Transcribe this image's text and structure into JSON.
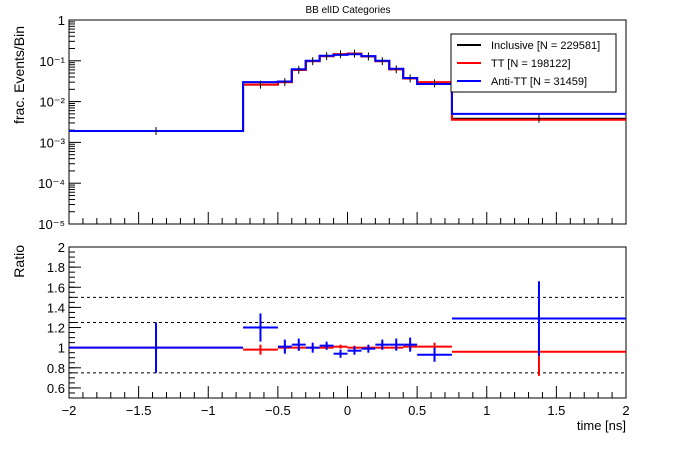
{
  "chart_data": [
    {
      "type": "line",
      "title": "BB elID Categories",
      "xlabel": "",
      "ylabel": "frac. Events/Bin",
      "xlim": [
        -2,
        2
      ],
      "ylim": [
        1e-05,
        1
      ],
      "yscale": "log",
      "y_tick_labels": [
        "10⁻⁵",
        "10⁻⁴",
        "10⁻³",
        "10⁻²",
        "10⁻¹",
        "1"
      ],
      "bin_edges": [
        -2,
        -0.75,
        -0.5,
        -0.4,
        -0.3,
        -0.2,
        -0.1,
        0,
        0.1,
        0.2,
        0.3,
        0.4,
        0.5,
        0.75,
        2
      ],
      "series": [
        {
          "name": "Inclusive [N = 229581]",
          "color": "#000000",
          "values": [
            0.0019,
            0.026,
            0.03,
            0.06,
            0.098,
            0.13,
            0.145,
            0.15,
            0.128,
            0.098,
            0.062,
            0.037,
            0.028,
            0.0038
          ]
        },
        {
          "name": "TT [N = 198122]",
          "color": "#ff0000",
          "values": [
            0.0019,
            0.026,
            0.03,
            0.06,
            0.098,
            0.13,
            0.145,
            0.15,
            0.128,
            0.098,
            0.062,
            0.037,
            0.03,
            0.0036
          ]
        },
        {
          "name": "Anti-TT [N = 31459]",
          "color": "#0000ff",
          "values": [
            0.0019,
            0.03,
            0.031,
            0.062,
            0.1,
            0.133,
            0.14,
            0.145,
            0.13,
            0.1,
            0.064,
            0.038,
            0.027,
            0.005
          ]
        }
      ],
      "legend": "top-right"
    },
    {
      "type": "scatter",
      "title": "",
      "xlabel": "time [ns]",
      "ylabel": "Ratio",
      "xlim": [
        -2,
        2
      ],
      "ylim": [
        0.5,
        2
      ],
      "x_tick_labels": [
        "−2",
        "−1.5",
        "−1",
        "−0.5",
        "0",
        "0.5",
        "1",
        "1.5",
        "2"
      ],
      "y_tick_labels": [
        "0.6",
        "0.8",
        "1",
        "1.2",
        "1.4",
        "1.6",
        "1.8",
        "2"
      ],
      "reference_lines": [
        0.75,
        1.25,
        1.5
      ],
      "series": [
        {
          "name": "TT",
          "color": "#ff0000",
          "points": [
            {
              "xlo": -2,
              "xhi": -0.75,
              "y": 1.0,
              "err": 0.01
            },
            {
              "xlo": -0.75,
              "xhi": -0.5,
              "y": 0.98,
              "err": 0.05
            },
            {
              "xlo": -0.5,
              "xhi": -0.4,
              "y": 1.0,
              "err": 0.03
            },
            {
              "xlo": -0.4,
              "xhi": -0.3,
              "y": 1.0,
              "err": 0.03
            },
            {
              "xlo": -0.3,
              "xhi": -0.2,
              "y": 1.0,
              "err": 0.02
            },
            {
              "xlo": -0.2,
              "xhi": -0.1,
              "y": 1.0,
              "err": 0.02
            },
            {
              "xlo": -0.1,
              "xhi": 0,
              "y": 1.01,
              "err": 0.02
            },
            {
              "xlo": 0,
              "xhi": 0.1,
              "y": 1.0,
              "err": 0.02
            },
            {
              "xlo": 0.1,
              "xhi": 0.2,
              "y": 1.0,
              "err": 0.02
            },
            {
              "xlo": 0.2,
              "xhi": 0.3,
              "y": 1.0,
              "err": 0.02
            },
            {
              "xlo": 0.3,
              "xhi": 0.4,
              "y": 1.0,
              "err": 0.02
            },
            {
              "xlo": 0.4,
              "xhi": 0.5,
              "y": 1.01,
              "err": 0.03
            },
            {
              "xlo": 0.5,
              "xhi": 0.75,
              "y": 1.01,
              "err": 0.04
            },
            {
              "xlo": 0.75,
              "xhi": 2,
              "y": 0.96,
              "err": 0.24
            }
          ]
        },
        {
          "name": "Anti-TT",
          "color": "#0000ff",
          "points": [
            {
              "xlo": -2,
              "xhi": -0.75,
              "y": 1.0,
              "err": 0.25
            },
            {
              "xlo": -0.75,
              "xhi": -0.5,
              "y": 1.2,
              "err": 0.14
            },
            {
              "xlo": -0.5,
              "xhi": -0.4,
              "y": 1.01,
              "err": 0.07
            },
            {
              "xlo": -0.4,
              "xhi": -0.3,
              "y": 1.03,
              "err": 0.06
            },
            {
              "xlo": -0.3,
              "xhi": -0.2,
              "y": 1.0,
              "err": 0.05
            },
            {
              "xlo": -0.2,
              "xhi": -0.1,
              "y": 1.02,
              "err": 0.04
            },
            {
              "xlo": -0.1,
              "xhi": 0,
              "y": 0.94,
              "err": 0.04
            },
            {
              "xlo": 0,
              "xhi": 0.1,
              "y": 0.97,
              "err": 0.04
            },
            {
              "xlo": 0.1,
              "xhi": 0.2,
              "y": 0.99,
              "err": 0.04
            },
            {
              "xlo": 0.2,
              "xhi": 0.3,
              "y": 1.03,
              "err": 0.05
            },
            {
              "xlo": 0.3,
              "xhi": 0.4,
              "y": 1.03,
              "err": 0.06
            },
            {
              "xlo": 0.4,
              "xhi": 0.5,
              "y": 1.03,
              "err": 0.07
            },
            {
              "xlo": 0.5,
              "xhi": 0.75,
              "y": 0.93,
              "err": 0.07
            },
            {
              "xlo": 0.75,
              "xhi": 2,
              "y": 1.29,
              "err": 0.37
            }
          ]
        }
      ]
    }
  ]
}
